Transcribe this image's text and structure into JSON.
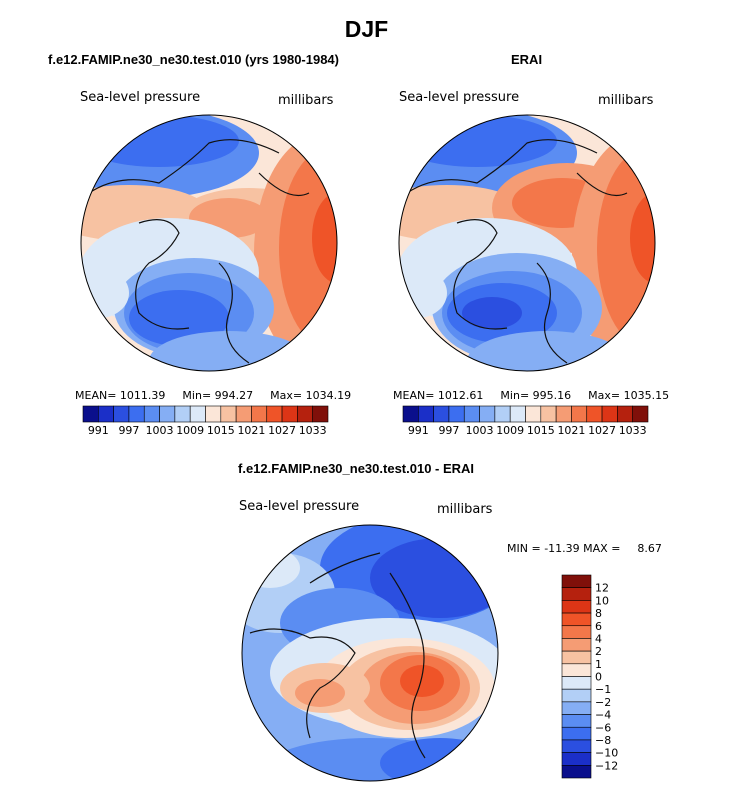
{
  "page": {
    "title": "DJF"
  },
  "panels": [
    {
      "title": "f.e12.FAMIP.ne30_ne30.test.010 (yrs 1980-1984)",
      "variable": "Sea-level pressure",
      "units": "millibars",
      "stats": {
        "mean_label": "MEAN=",
        "mean": "1011.39",
        "min_label": "Min=",
        "min": "994.27",
        "max_label": "Max=",
        "max": "1034.19"
      }
    },
    {
      "title": "ERAI",
      "variable": "Sea-level pressure",
      "units": "millibars",
      "stats": {
        "mean_label": "MEAN=",
        "mean": "1012.61",
        "min_label": "Min=",
        "min": "995.16",
        "max_label": "Max=",
        "max": "1035.15"
      }
    },
    {
      "title": "f.e12.FAMIP.ne30_ne30.test.010 - ERAI",
      "variable": "Sea-level pressure",
      "units": "millibars",
      "stats": {
        "min_label": "MIN =",
        "min": "-11.39",
        "max_label": "MAX =",
        "max": "8.67"
      }
    }
  ],
  "colorbars": {
    "slp": {
      "tick_labels": [
        "991",
        "997",
        "1003",
        "1009",
        "1015",
        "1021",
        "1027",
        "1033"
      ],
      "colors": [
        "#0a0f8c",
        "#1b2fc8",
        "#2b4fe0",
        "#3c6ef0",
        "#5b8df2",
        "#85aef4",
        "#b2cff6",
        "#dce9f8",
        "#fbe6d8",
        "#f7c2a2",
        "#f59c74",
        "#f3774a",
        "#ef5428",
        "#dc3516",
        "#b5210e",
        "#80100a"
      ]
    },
    "diff": {
      "tick_labels": [
        "12",
        "10",
        "8",
        "6",
        "4",
        "2",
        "1",
        "0",
        "−1",
        "−2",
        "−4",
        "−6",
        "−8",
        "−10",
        "−12"
      ],
      "colors": [
        "#80100a",
        "#b5210e",
        "#dc3516",
        "#ef5428",
        "#f3774a",
        "#f59c74",
        "#f7c2a2",
        "#fbe6d8",
        "#dce9f8",
        "#b2cff6",
        "#85aef4",
        "#5b8df2",
        "#3c6ef0",
        "#2b4fe0",
        "#1b2fc8",
        "#0a0f8c"
      ]
    }
  }
}
